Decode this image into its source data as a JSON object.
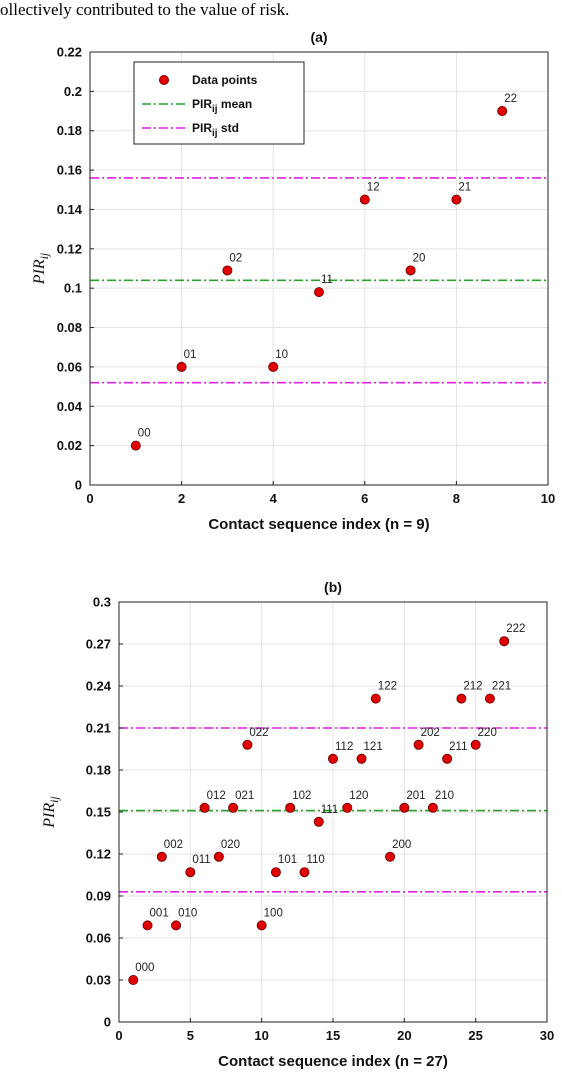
{
  "header_text": "ollectively contributed to the value of risk.",
  "chart_data": [
    {
      "type": "scatter",
      "title": "(a)",
      "xlabel": "Contact sequence index (n = 9)",
      "ylabel": "PIR",
      "ylabel_sub": "ij",
      "xlim": [
        0,
        10
      ],
      "ylim": [
        0,
        0.22
      ],
      "xticks": [
        0,
        2,
        4,
        6,
        8,
        10
      ],
      "yticks": [
        0,
        0.02,
        0.04,
        0.06,
        0.08,
        0.1,
        0.12,
        0.14,
        0.16,
        0.18,
        0.2,
        0.22
      ],
      "grid": true,
      "legend_position": "top-left",
      "legend": [
        {
          "label": "Data points",
          "type": "marker",
          "color": "#e00000"
        },
        {
          "label": "PIR",
          "sub": "ij",
          "suffix": " mean",
          "type": "dashdot",
          "color": "#2ca02c"
        },
        {
          "label": "PIR",
          "sub": "ij",
          "suffix": " std",
          "type": "dashdot",
          "color": "#e020e0"
        }
      ],
      "points": [
        {
          "x": 1,
          "y": 0.02,
          "label": "00"
        },
        {
          "x": 2,
          "y": 0.06,
          "label": "01"
        },
        {
          "x": 3,
          "y": 0.109,
          "label": "02"
        },
        {
          "x": 4,
          "y": 0.06,
          "label": "10"
        },
        {
          "x": 5,
          "y": 0.098,
          "label": "11"
        },
        {
          "x": 6,
          "y": 0.145,
          "label": "12"
        },
        {
          "x": 7,
          "y": 0.109,
          "label": "20"
        },
        {
          "x": 8,
          "y": 0.145,
          "label": "21"
        },
        {
          "x": 9,
          "y": 0.19,
          "label": "22"
        }
      ],
      "mean": 0.104,
      "std_lines": [
        0.052,
        0.156
      ],
      "colors": {
        "points": "#e00000",
        "mean": "#2ca02c",
        "std": "#e020e0"
      }
    },
    {
      "type": "scatter",
      "title": "(b)",
      "xlabel": "Contact sequence index (n = 27)",
      "ylabel": "PIR",
      "ylabel_sub": "ij",
      "xlim": [
        0,
        30
      ],
      "ylim": [
        0,
        0.3
      ],
      "xticks": [
        0,
        5,
        10,
        15,
        20,
        25,
        30
      ],
      "yticks": [
        0,
        0.03,
        0.06,
        0.09,
        0.12,
        0.15,
        0.18,
        0.21,
        0.24,
        0.27,
        0.3
      ],
      "grid": true,
      "points": [
        {
          "x": 1,
          "y": 0.03,
          "label": "000"
        },
        {
          "x": 2,
          "y": 0.069,
          "label": "001"
        },
        {
          "x": 3,
          "y": 0.118,
          "label": "002"
        },
        {
          "x": 4,
          "y": 0.069,
          "label": "010"
        },
        {
          "x": 5,
          "y": 0.107,
          "label": "011"
        },
        {
          "x": 6,
          "y": 0.153,
          "label": "012"
        },
        {
          "x": 7,
          "y": 0.118,
          "label": "020"
        },
        {
          "x": 8,
          "y": 0.153,
          "label": "021"
        },
        {
          "x": 9,
          "y": 0.198,
          "label": "022"
        },
        {
          "x": 10,
          "y": 0.069,
          "label": "100"
        },
        {
          "x": 11,
          "y": 0.107,
          "label": "101"
        },
        {
          "x": 12,
          "y": 0.153,
          "label": "102"
        },
        {
          "x": 13,
          "y": 0.107,
          "label": "110"
        },
        {
          "x": 14,
          "y": 0.143,
          "label": "111"
        },
        {
          "x": 15,
          "y": 0.188,
          "label": "112"
        },
        {
          "x": 16,
          "y": 0.153,
          "label": "120"
        },
        {
          "x": 17,
          "y": 0.188,
          "label": "121"
        },
        {
          "x": 18,
          "y": 0.231,
          "label": "122"
        },
        {
          "x": 19,
          "y": 0.118,
          "label": "200"
        },
        {
          "x": 20,
          "y": 0.153,
          "label": "201"
        },
        {
          "x": 21,
          "y": 0.198,
          "label": "202"
        },
        {
          "x": 22,
          "y": 0.153,
          "label": "210"
        },
        {
          "x": 23,
          "y": 0.188,
          "label": "211"
        },
        {
          "x": 24,
          "y": 0.231,
          "label": "212"
        },
        {
          "x": 25,
          "y": 0.198,
          "label": "220"
        },
        {
          "x": 26,
          "y": 0.231,
          "label": "221"
        },
        {
          "x": 27,
          "y": 0.272,
          "label": "222"
        }
      ],
      "mean": 0.151,
      "std_lines": [
        0.093,
        0.21
      ],
      "colors": {
        "points": "#e00000",
        "mean": "#2ca02c",
        "std": "#e020e0"
      }
    }
  ]
}
